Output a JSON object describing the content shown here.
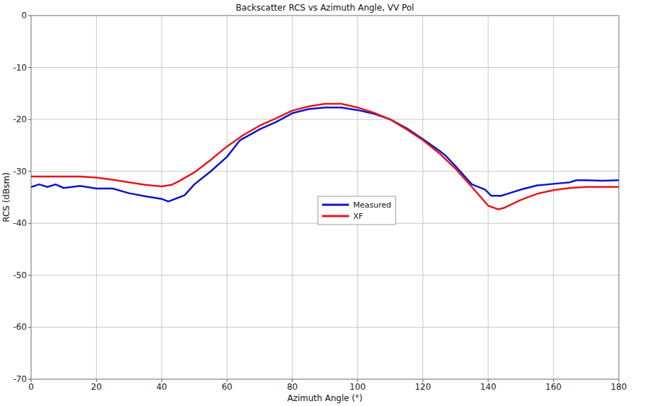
{
  "chart_data": {
    "type": "line",
    "title": "Backscatter RCS vs Azimuth Angle, VV Pol",
    "x_label": "Azimuth Angle (°)",
    "y_label": "RCS (dBsm)",
    "xlim": [
      0,
      180
    ],
    "ylim": [
      -70,
      0
    ],
    "xticks": [
      0,
      20,
      40,
      60,
      80,
      100,
      120,
      140,
      160,
      180
    ],
    "yticks": [
      0,
      -10,
      -20,
      -30,
      -40,
      -50,
      -60,
      -70
    ],
    "grid": true,
    "legend": "center",
    "series": [
      {
        "name": "Measured",
        "color": "#0a14c8",
        "x": [
          0,
          2.5,
          5,
          7.5,
          10,
          15,
          20,
          25,
          30,
          35,
          40,
          42,
          47,
          50,
          55,
          60,
          64,
          70,
          75,
          80,
          85,
          90,
          95,
          100,
          105,
          110,
          115,
          120,
          125,
          127,
          130,
          135,
          139,
          141,
          144,
          146,
          150,
          155,
          160,
          165,
          167,
          170,
          175,
          180
        ],
        "values": [
          -33,
          -32.5,
          -33,
          -32.5,
          -33.2,
          -32.8,
          -33.3,
          -33.3,
          -34.2,
          -34.8,
          -35.3,
          -35.8,
          -34.6,
          -32.5,
          -30,
          -27.2,
          -24,
          -21.9,
          -20.5,
          -18.8,
          -18,
          -17.7,
          -17.7,
          -18.2,
          -18.9,
          -20,
          -21.7,
          -23.8,
          -26,
          -27,
          -29,
          -32.5,
          -33.5,
          -34.7,
          -34.7,
          -34.3,
          -33.5,
          -32.7,
          -32.4,
          -32.1,
          -31.7,
          -31.7,
          -31.8,
          -31.7
        ]
      },
      {
        "name": "XF",
        "color": "#e8141c",
        "x": [
          0,
          5,
          10,
          15,
          20,
          25,
          30,
          35,
          40,
          43,
          45,
          50,
          55,
          60,
          65,
          70,
          75,
          80,
          85,
          90,
          95,
          100,
          105,
          110,
          115,
          120,
          125,
          130,
          135,
          140,
          143,
          145,
          150,
          155,
          160,
          165,
          170,
          175,
          180
        ],
        "values": [
          -31,
          -31,
          -31,
          -31,
          -31.2,
          -31.6,
          -32.1,
          -32.6,
          -32.9,
          -32.6,
          -32,
          -30.2,
          -27.8,
          -25.2,
          -23,
          -21.2,
          -19.8,
          -18.3,
          -17.5,
          -17,
          -17,
          -17.7,
          -18.7,
          -20,
          -21.9,
          -24,
          -26.5,
          -29.5,
          -33,
          -36.6,
          -37.3,
          -37,
          -35.5,
          -34.3,
          -33.6,
          -33.2,
          -33,
          -33,
          -33
        ]
      }
    ]
  }
}
